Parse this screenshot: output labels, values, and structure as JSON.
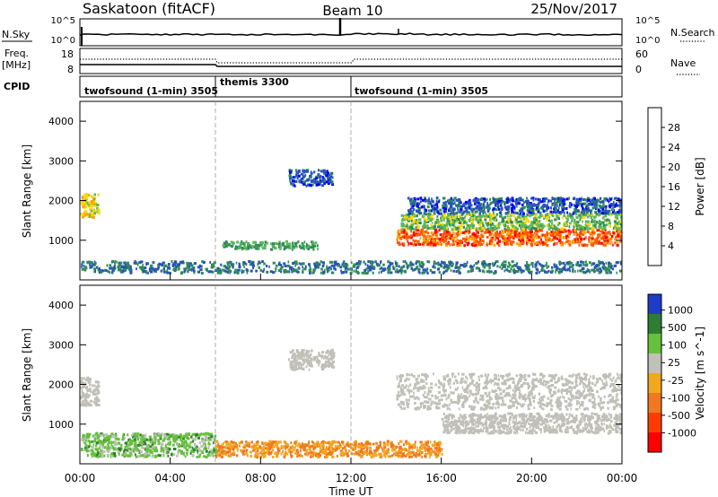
{
  "header": {
    "station": "Saskatoon (fitACF)",
    "beam": "Beam 10",
    "date": "25/Nov/2017"
  },
  "noise_panel": {
    "left_label": "N.Sky",
    "left_ticks": [
      "10^5",
      "10^0"
    ],
    "right_label": "N.Search",
    "right_ticks": [
      "10^5",
      "10^0"
    ]
  },
  "freq_panel": {
    "left_label_1": "Freq.",
    "left_label_2": "[MHz]",
    "left_ticks": [
      "18",
      "8"
    ],
    "right_label": "Nave",
    "right_ticks": [
      "60",
      "0"
    ]
  },
  "cpid_panel": {
    "label": "CPID",
    "segments": [
      {
        "label": "twofsound (1-min) 3505",
        "start_hour": 0
      },
      {
        "label": "themis 3300",
        "start_hour": 6
      },
      {
        "label": "twofsound (1-min) 3505",
        "start_hour": 12
      }
    ]
  },
  "colors": {
    "power_scale": [
      "#0000ff",
      "#2855b4",
      "#2e8b57",
      "#5cb85c",
      "#ffd700",
      "#ffa500",
      "#ff5a00",
      "#ff0000"
    ],
    "velocity_scale": [
      "#1e3cc8",
      "#2e7d32",
      "#66c03c",
      "#c0c0b8",
      "#f0a820",
      "#f07820",
      "#ff3c00",
      "#ff0000"
    ]
  },
  "chart_data": [
    {
      "type": "heatmap",
      "name": "power",
      "ylabel": "Slant Range [km]",
      "xlabel": "",
      "xlim": [
        0,
        24
      ],
      "ylim": [
        0,
        4500
      ],
      "y_ticks": [
        "1000",
        "2000",
        "3000",
        "4000"
      ],
      "colorbar_label": "Power [dB]",
      "colorbar_ticks": [
        "4",
        "8",
        "12",
        "16",
        "20",
        "24",
        "28"
      ],
      "features": [
        {
          "x_start": 0.0,
          "x_end": 0.8,
          "y_start": 1600,
          "y_end": 2200,
          "power_db": 18
        },
        {
          "x_start": 0.0,
          "x_end": 24.0,
          "y_start": 200,
          "y_end": 500,
          "power_db": 8
        },
        {
          "x_start": 6.3,
          "x_end": 10.5,
          "y_start": 800,
          "y_end": 1000,
          "power_db": 12
        },
        {
          "x_start": 9.2,
          "x_end": 11.2,
          "y_start": 2400,
          "y_end": 2800,
          "power_db": 6
        },
        {
          "x_start": 14.0,
          "x_end": 24.0,
          "y_start": 900,
          "y_end": 1300,
          "power_db": 26
        },
        {
          "x_start": 14.2,
          "x_end": 24.0,
          "y_start": 1300,
          "y_end": 1700,
          "power_db": 14
        },
        {
          "x_start": 14.5,
          "x_end": 24.0,
          "y_start": 1700,
          "y_end": 2100,
          "power_db": 6
        }
      ]
    },
    {
      "type": "heatmap",
      "name": "velocity",
      "ylabel": "Slant Range [km]",
      "xlabel": "Time UT",
      "xlim": [
        0,
        24
      ],
      "ylim": [
        0,
        4500
      ],
      "x_ticks": [
        "00:00",
        "04:00",
        "08:00",
        "12:00",
        "16:00",
        "20:00",
        "00:00"
      ],
      "y_ticks": [
        "1000",
        "2000",
        "3000",
        "4000"
      ],
      "colorbar_label": "Velocity [m s^-1]",
      "colorbar_ticks": [
        "1000",
        "500",
        "100",
        "25",
        "-25",
        "-100",
        "-500",
        "-1000"
      ],
      "features": [
        {
          "x_start": 0.0,
          "x_end": 0.8,
          "y_start": 1500,
          "y_end": 2200,
          "velocity": 0
        },
        {
          "x_start": 0.0,
          "x_end": 6.0,
          "y_start": 200,
          "y_end": 800,
          "velocity": 60
        },
        {
          "x_start": 6.0,
          "x_end": 16.0,
          "y_start": 200,
          "y_end": 600,
          "velocity": -100
        },
        {
          "x_start": 9.2,
          "x_end": 11.2,
          "y_start": 2400,
          "y_end": 2900,
          "velocity": 0
        },
        {
          "x_start": 14.0,
          "x_end": 24.0,
          "y_start": 1400,
          "y_end": 2300,
          "velocity": 0
        },
        {
          "x_start": 16.0,
          "x_end": 24.0,
          "y_start": 800,
          "y_end": 1300,
          "velocity": 0
        }
      ]
    }
  ]
}
